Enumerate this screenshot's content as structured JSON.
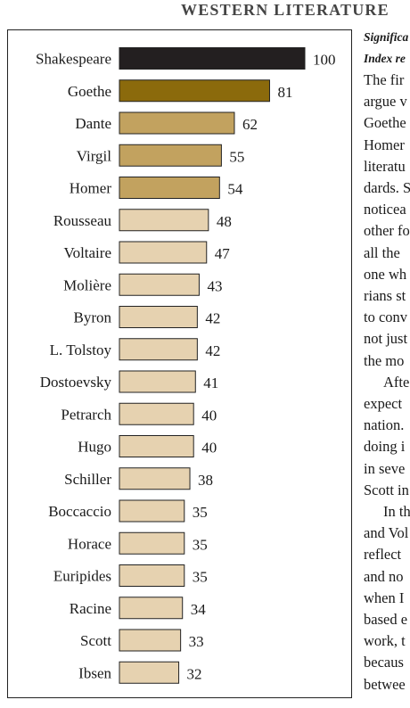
{
  "header": {
    "title": "WESTERN LITERATURE"
  },
  "chart_data": {
    "type": "bar",
    "orientation": "horizontal",
    "title": "",
    "xlabel": "",
    "ylabel": "",
    "xlim": [
      0,
      100
    ],
    "categories": [
      "Shakespeare",
      "Goethe",
      "Dante",
      "Virgil",
      "Homer",
      "Rousseau",
      "Voltaire",
      "Molière",
      "Byron",
      "L. Tolstoy",
      "Dostoevsky",
      "Petrarch",
      "Hugo",
      "Schiller",
      "Boccaccio",
      "Horace",
      "Euripides",
      "Racine",
      "Scott",
      "Ibsen"
    ],
    "values": [
      100,
      81,
      62,
      55,
      54,
      48,
      47,
      43,
      42,
      42,
      41,
      40,
      40,
      38,
      35,
      35,
      35,
      34,
      33,
      32
    ],
    "value_labels": [
      "100",
      "81",
      "62",
      "55",
      "54",
      "48",
      "47",
      "43",
      "42",
      "42",
      "41",
      "40",
      "40",
      "38",
      "35",
      "35",
      "35",
      "34",
      "33",
      "32"
    ],
    "bar_colors": [
      "#231f20",
      "#8b6a0c",
      "#c2a25f",
      "#c2a25f",
      "#c2a25f",
      "#e6d2b0",
      "#e6d2b0",
      "#e6d2b0",
      "#e6d2b0",
      "#e6d2b0",
      "#e6d2b0",
      "#e6d2b0",
      "#e6d2b0",
      "#e6d2b0",
      "#e6d2b0",
      "#e6d2b0",
      "#e6d2b0",
      "#e6d2b0",
      "#e6d2b0",
      "#e6d2b0"
    ],
    "grid": false,
    "legend": "none"
  },
  "side_text": {
    "caption_lines": [
      "Significa",
      "Index re"
    ],
    "body_lines": [
      {
        "text": "The fir",
        "indent": false
      },
      {
        "text": "argue v",
        "indent": false
      },
      {
        "text": "Goethe",
        "indent": false
      },
      {
        "text": "Homer",
        "indent": false
      },
      {
        "text": "literatu",
        "indent": false
      },
      {
        "text": "dards. S",
        "indent": false
      },
      {
        "text": "noticea",
        "indent": false
      },
      {
        "text": "other fo",
        "indent": false
      },
      {
        "text": "all the",
        "indent": false
      },
      {
        "text": "one wh",
        "indent": false
      },
      {
        "text": "rians st",
        "indent": false
      },
      {
        "text": "to conv",
        "indent": false
      },
      {
        "text": "not just",
        "indent": false
      },
      {
        "text": "the mo",
        "indent": false
      },
      {
        "text": "Afte",
        "indent": true
      },
      {
        "text": "expect",
        "indent": false
      },
      {
        "text": "nation.",
        "indent": false
      },
      {
        "text": "doing i",
        "indent": false
      },
      {
        "text": "in seve",
        "indent": false
      },
      {
        "text": "Scott in",
        "indent": false
      },
      {
        "text": "In th",
        "indent": true
      },
      {
        "text": "and Vol",
        "indent": false
      },
      {
        "text": "reflect",
        "indent": false
      },
      {
        "text": "and no",
        "indent": false
      },
      {
        "text": "when I",
        "indent": false
      },
      {
        "text": "based e",
        "indent": false
      },
      {
        "text": "work, t",
        "indent": false
      },
      {
        "text": "becaus",
        "indent": false
      },
      {
        "text": "betwee",
        "indent": false
      }
    ]
  }
}
